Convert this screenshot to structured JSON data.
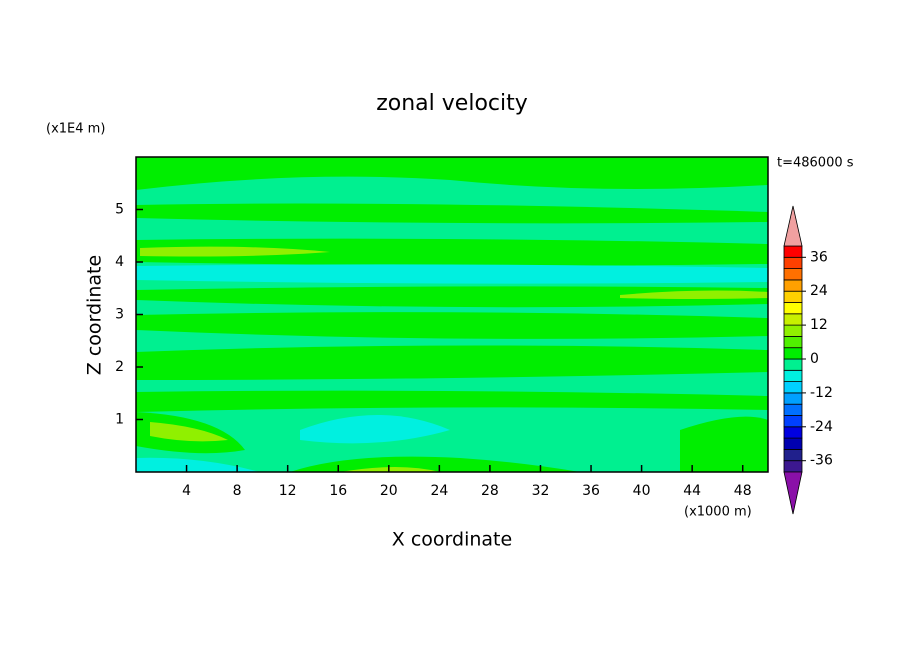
{
  "chart_data": {
    "type": "contour",
    "title": "zonal velocity",
    "x_label": "X coordinate",
    "y_label": "Z coordinate",
    "x_unit": "(x1000 m)",
    "y_unit": "(x1E4 m)",
    "time_label": "t=486000 s",
    "xlim": [
      0,
      50
    ],
    "xticks": [
      4,
      8,
      12,
      16,
      20,
      24,
      28,
      32,
      36,
      40,
      44,
      48
    ],
    "ylim": [
      0,
      6
    ],
    "yticks": [
      1,
      2,
      3,
      4,
      5
    ],
    "colorbar": {
      "lim": [
        -40,
        40
      ],
      "ticks": [
        36,
        24,
        12,
        0,
        -12,
        -24,
        -36
      ],
      "colors": [
        "#3c1890",
        "#20208c",
        "#0000b0",
        "#0000e0",
        "#0040ff",
        "#0070ff",
        "#00a0ff",
        "#00d0ff",
        "#00f0e0",
        "#00f090",
        "#00ee00",
        "#50f000",
        "#90f000",
        "#c8f000",
        "#ffff00",
        "#ffd000",
        "#ffa000",
        "#ff7000",
        "#ff4000",
        "#ff0000"
      ],
      "under_color": "#8a10a8",
      "over_color": "#f0a0a0"
    }
  }
}
